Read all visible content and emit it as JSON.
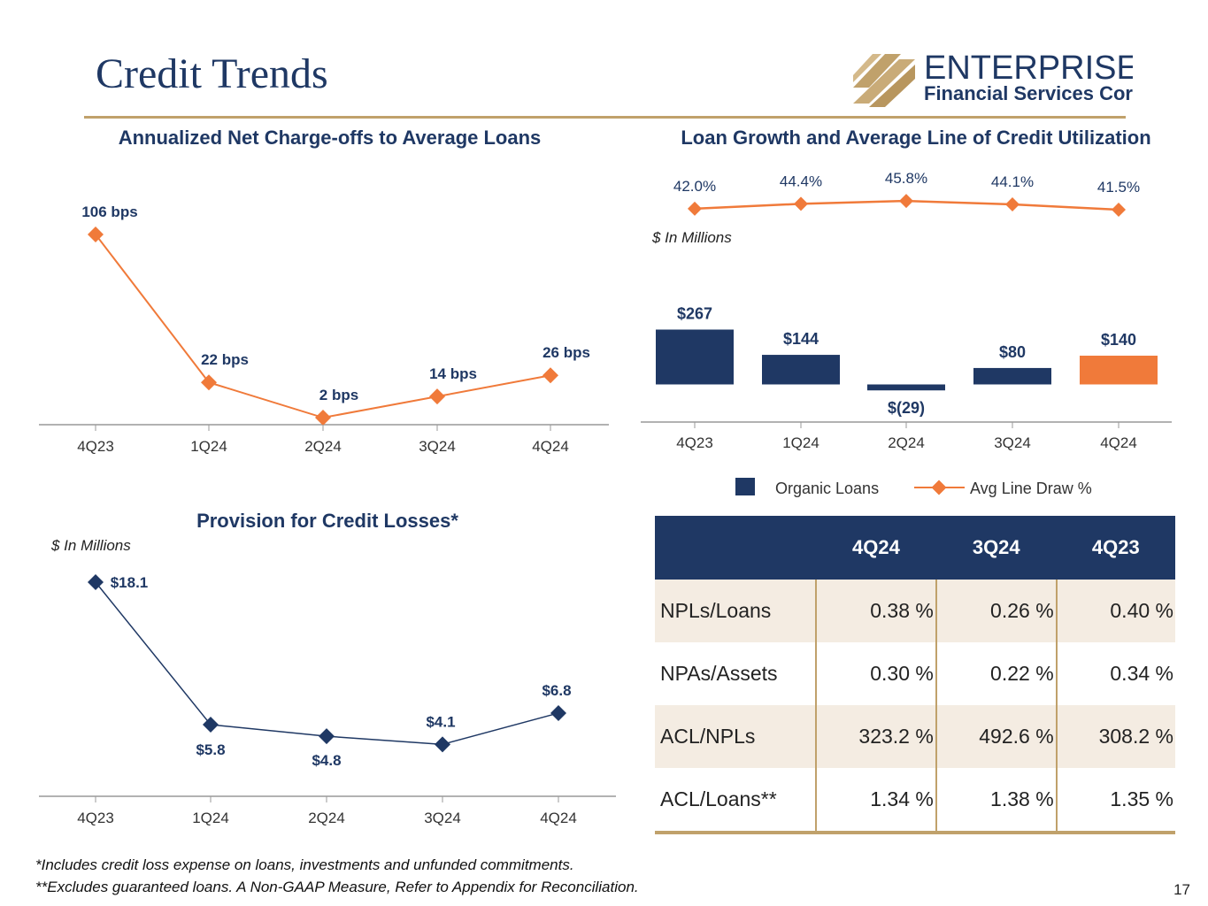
{
  "page": {
    "title": "Credit Trends",
    "page_number": "17",
    "footnotes": [
      "*Includes credit loss expense on loans, investments and unfunded commitments.",
      "**Excludes guaranteed loans. A Non-GAAP Measure, Refer to Appendix for Reconciliation."
    ]
  },
  "logo": {
    "line1": "ENTERPRISE",
    "line2": "Financial Services Corp"
  },
  "colors": {
    "navy": "#1f3864",
    "orange": "#f07a3a",
    "gold": "#c0a16b",
    "beige": "#f4ece2"
  },
  "chart_data": [
    {
      "type": "line",
      "title": "Annualized Net Charge-offs to Average Loans",
      "categories": [
        "4Q23",
        "1Q24",
        "2Q24",
        "3Q24",
        "4Q24"
      ],
      "values": [
        106,
        22,
        2,
        14,
        26
      ],
      "labels": [
        "106 bps",
        "22 bps",
        "2 bps",
        "14 bps",
        "26 bps"
      ],
      "unit": "bps",
      "ylim": [
        0,
        106
      ],
      "color": "#f07a3a"
    },
    {
      "type": "bar",
      "title": "Loan Growth and Average Line of Credit Utilization",
      "note": "$ In Millions",
      "categories": [
        "4Q23",
        "1Q24",
        "2Q24",
        "3Q24",
        "4Q24"
      ],
      "series": [
        {
          "name": "Organic Loans",
          "type": "bar",
          "values": [
            267,
            144,
            -29,
            80,
            140
          ],
          "labels": [
            "$267",
            "$144",
            "$(29)",
            "$80",
            "$140"
          ],
          "colors": [
            "#1f3864",
            "#1f3864",
            "#1f3864",
            "#1f3864",
            "#f07a3a"
          ]
        },
        {
          "name": "Avg Line Draw %",
          "type": "line",
          "values": [
            42.0,
            44.4,
            45.8,
            44.1,
            41.5
          ],
          "labels": [
            "42.0%",
            "44.4%",
            "45.8%",
            "44.1%",
            "41.5%"
          ],
          "color": "#f07a3a"
        }
      ],
      "legend": [
        "Organic Loans",
        "Avg Line Draw %"
      ]
    },
    {
      "type": "line",
      "title": "Provision for Credit Losses*",
      "note": "$ In Millions",
      "categories": [
        "4Q23",
        "1Q24",
        "2Q24",
        "3Q24",
        "4Q24"
      ],
      "values": [
        18.1,
        5.8,
        4.8,
        4.1,
        6.8
      ],
      "labels": [
        "$18.1",
        "$5.8",
        "$4.8",
        "$4.1",
        "$6.8"
      ],
      "ylim": [
        0,
        18.1
      ],
      "color": "#1f3864"
    },
    {
      "type": "table",
      "columns": [
        "",
        "4Q24",
        "3Q24",
        "4Q23"
      ],
      "rows": [
        {
          "label": "NPLs/Loans",
          "values": [
            "0.38 %",
            "0.26 %",
            "0.40 %"
          ]
        },
        {
          "label": "NPAs/Assets",
          "values": [
            "0.30 %",
            "0.22 %",
            "0.34 %"
          ]
        },
        {
          "label": "ACL/NPLs",
          "values": [
            "323.2 %",
            "492.6 %",
            "308.2 %"
          ]
        },
        {
          "label": "ACL/Loans**",
          "values": [
            "1.34 %",
            "1.38 %",
            "1.35 %"
          ]
        }
      ]
    }
  ]
}
